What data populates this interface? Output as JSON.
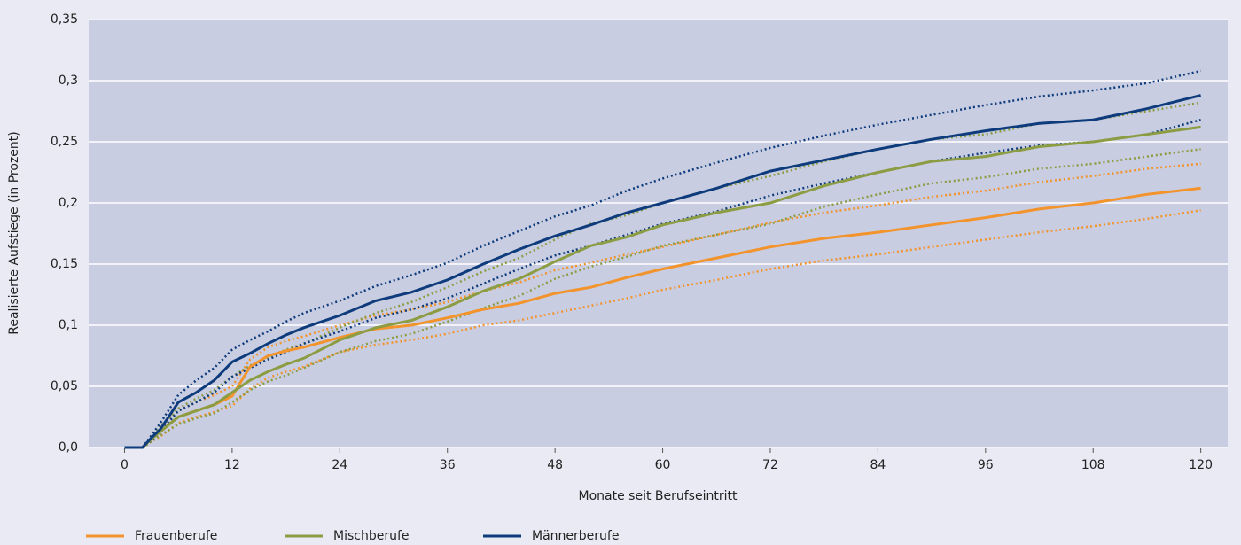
{
  "chart_data": {
    "type": "line",
    "x_label": "Monate seit Berufseintritt",
    "y_label": "Realisierte Aufstiege (in Prozent)",
    "x": [
      0,
      2,
      3,
      4,
      6,
      8,
      10,
      12,
      14,
      16,
      18,
      20,
      24,
      28,
      32,
      36,
      40,
      44,
      48,
      52,
      56,
      60,
      66,
      72,
      78,
      84,
      90,
      96,
      102,
      108,
      114,
      120
    ],
    "xlim": [
      -4,
      123
    ],
    "ylim": [
      0,
      0.35
    ],
    "xticks": [
      0,
      12,
      24,
      36,
      48,
      60,
      72,
      84,
      96,
      108,
      120
    ],
    "yticks": [
      {
        "value": 0,
        "label": "0,0"
      },
      {
        "value": 0.05,
        "label": "0,05"
      },
      {
        "value": 0.1,
        "label": "0,1"
      },
      {
        "value": 0.15,
        "label": "0,15"
      },
      {
        "value": 0.2,
        "label": "0,2"
      },
      {
        "value": 0.25,
        "label": "0,25"
      },
      {
        "value": 0.3,
        "label": "0,3"
      },
      {
        "value": 0.35,
        "label": "0,35"
      }
    ],
    "grid": true,
    "series": [
      {
        "color": "#f3932b",
        "dotted": true,
        "values": [
          0,
          0,
          0.009,
          0.017,
          0.03,
          0.037,
          0.043,
          0.05,
          0.072,
          0.082,
          0.087,
          0.091,
          0.1,
          0.108,
          0.113,
          0.119,
          0.128,
          0.135,
          0.145,
          0.151,
          0.158,
          0.164,
          0.174,
          0.184,
          0.192,
          0.198,
          0.205,
          0.21,
          0.217,
          0.222,
          0.228,
          0.232
        ]
      },
      {
        "color": "#f3932b",
        "dotted": true,
        "values": [
          0,
          0,
          0.005,
          0.009,
          0.02,
          0.025,
          0.029,
          0.034,
          0.048,
          0.057,
          0.062,
          0.066,
          0.078,
          0.084,
          0.088,
          0.093,
          0.1,
          0.104,
          0.11,
          0.116,
          0.122,
          0.129,
          0.137,
          0.146,
          0.153,
          0.158,
          0.164,
          0.17,
          0.176,
          0.181,
          0.187,
          0.194
        ]
      },
      {
        "color": "#8c9c42",
        "dotted": true,
        "values": [
          0,
          0,
          0.009,
          0.017,
          0.032,
          0.04,
          0.047,
          0.058,
          0.067,
          0.074,
          0.08,
          0.085,
          0.098,
          0.11,
          0.119,
          0.131,
          0.144,
          0.155,
          0.17,
          0.183,
          0.19,
          0.2,
          0.212,
          0.222,
          0.234,
          0.244,
          0.252,
          0.256,
          0.265,
          0.268,
          0.275,
          0.282
        ]
      },
      {
        "color": "#8c9c42",
        "dotted": true,
        "values": [
          0,
          0,
          0.005,
          0.01,
          0.019,
          0.024,
          0.028,
          0.037,
          0.047,
          0.054,
          0.059,
          0.065,
          0.078,
          0.087,
          0.093,
          0.103,
          0.114,
          0.124,
          0.138,
          0.148,
          0.156,
          0.165,
          0.174,
          0.183,
          0.197,
          0.207,
          0.216,
          0.221,
          0.228,
          0.232,
          0.238,
          0.244
        ]
      },
      {
        "color": "#0d3b7c",
        "dotted": true,
        "values": [
          0,
          0,
          0.01,
          0.02,
          0.043,
          0.055,
          0.065,
          0.08,
          0.088,
          0.095,
          0.103,
          0.11,
          0.12,
          0.132,
          0.141,
          0.151,
          0.165,
          0.177,
          0.189,
          0.198,
          0.21,
          0.22,
          0.233,
          0.245,
          0.255,
          0.264,
          0.272,
          0.28,
          0.287,
          0.292,
          0.298,
          0.308
        ]
      },
      {
        "color": "#0d3b7c",
        "dotted": true,
        "values": [
          0,
          0,
          0.006,
          0.013,
          0.03,
          0.037,
          0.045,
          0.058,
          0.065,
          0.072,
          0.078,
          0.085,
          0.095,
          0.106,
          0.113,
          0.122,
          0.134,
          0.146,
          0.157,
          0.165,
          0.174,
          0.183,
          0.193,
          0.206,
          0.216,
          0.225,
          0.234,
          0.241,
          0.247,
          0.25,
          0.256,
          0.268
        ]
      },
      {
        "name": "Frauenberufe",
        "color": "#f3932b",
        "values": [
          0,
          0,
          0.007,
          0.013,
          0.025,
          0.03,
          0.035,
          0.042,
          0.066,
          0.075,
          0.079,
          0.082,
          0.09,
          0.097,
          0.1,
          0.106,
          0.113,
          0.118,
          0.126,
          0.131,
          0.139,
          0.146,
          0.155,
          0.164,
          0.171,
          0.176,
          0.182,
          0.188,
          0.195,
          0.2,
          0.207,
          0.212
        ]
      },
      {
        "name": "Mischberufe",
        "color": "#8c9c42",
        "values": [
          0,
          0,
          0.007,
          0.013,
          0.025,
          0.03,
          0.035,
          0.045,
          0.055,
          0.062,
          0.068,
          0.073,
          0.088,
          0.098,
          0.104,
          0.115,
          0.128,
          0.138,
          0.152,
          0.165,
          0.172,
          0.182,
          0.192,
          0.2,
          0.214,
          0.225,
          0.234,
          0.238,
          0.246,
          0.25,
          0.256,
          0.262
        ]
      },
      {
        "name": "Männerberufe",
        "color": "#0d3b7c",
        "values": [
          0,
          0,
          0.008,
          0.015,
          0.037,
          0.045,
          0.055,
          0.07,
          0.077,
          0.085,
          0.092,
          0.098,
          0.108,
          0.12,
          0.127,
          0.137,
          0.15,
          0.162,
          0.173,
          0.182,
          0.192,
          0.2,
          0.212,
          0.226,
          0.235,
          0.244,
          0.252,
          0.259,
          0.265,
          0.268,
          0.277,
          0.288
        ]
      }
    ]
  }
}
